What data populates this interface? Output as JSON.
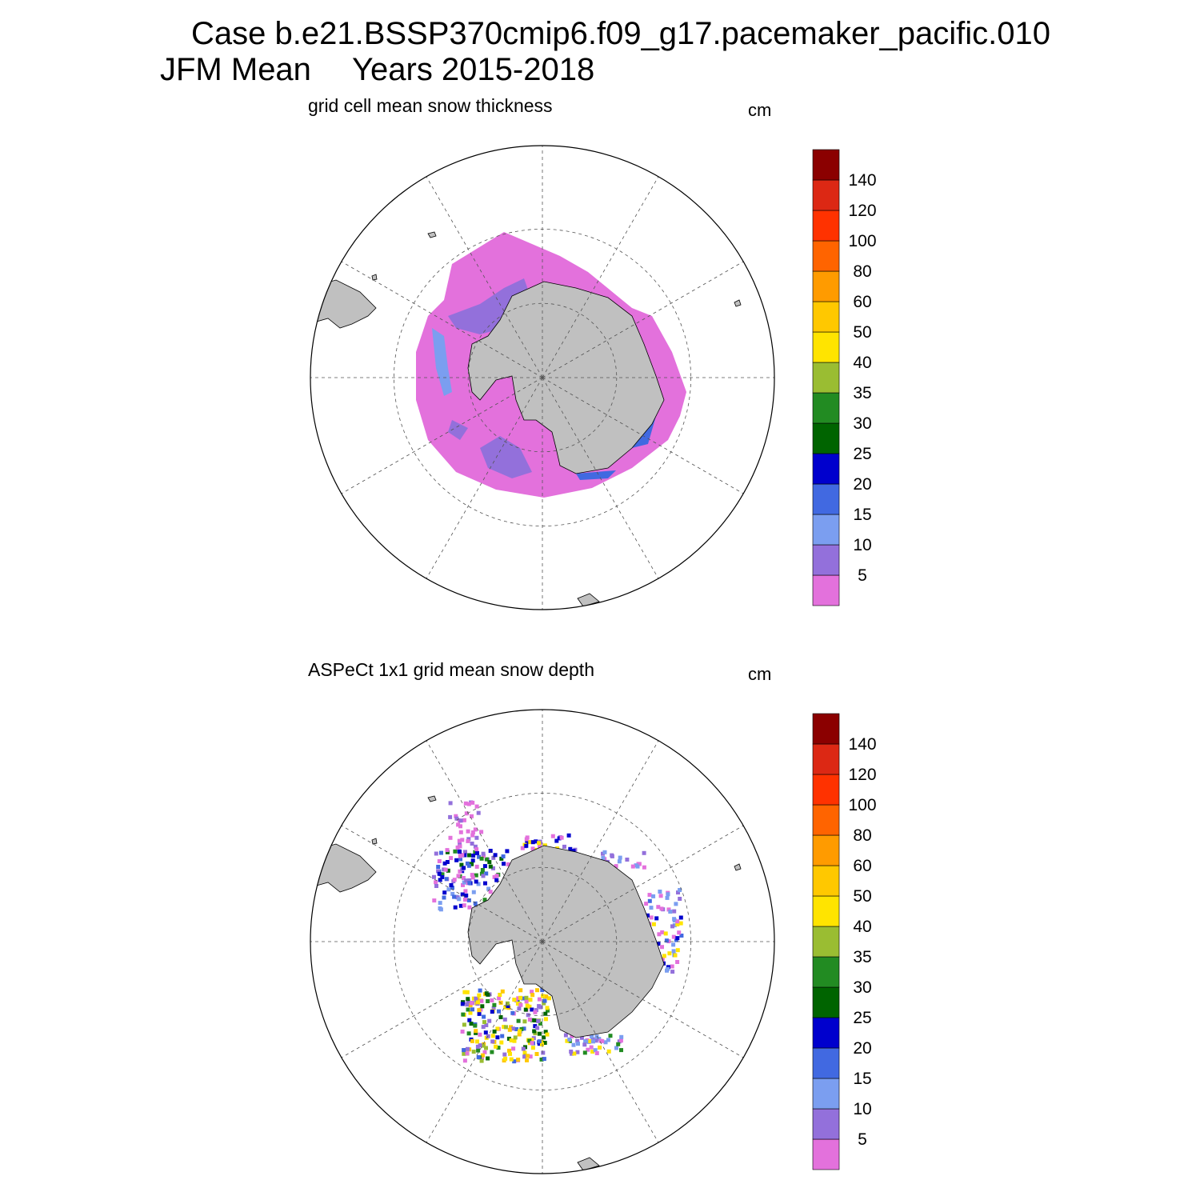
{
  "header": {
    "line1": "Case b.e21.BSSP370cmip6.f09_g17.pacemaker_pacific.010",
    "line2_season": "JFM Mean",
    "line2_years": "Years 2015-2018"
  },
  "colorbar": {
    "colors": [
      "#e371dc",
      "#9370db",
      "#7b9ef0",
      "#4169e1",
      "#0000cd",
      "#006400",
      "#228b22",
      "#9abd32",
      "#ffe400",
      "#ffc800",
      "#ff9b00",
      "#ff6400",
      "#ff3200",
      "#dc2814",
      "#8b0000"
    ],
    "labels": [
      "5",
      "10",
      "15",
      "20",
      "25",
      "30",
      "35",
      "40",
      "50",
      "60",
      "80",
      "100",
      "120",
      "140"
    ]
  },
  "map_style": {
    "land": "#c0c0c0",
    "coast": "#000000",
    "grid": "#555555"
  },
  "panels": [
    {
      "id": "model",
      "title": "grid cell mean snow thickness",
      "units": "cm"
    },
    {
      "id": "obs",
      "title": "ASPeCt 1x1 grid mean snow depth",
      "units": "cm"
    }
  ]
}
